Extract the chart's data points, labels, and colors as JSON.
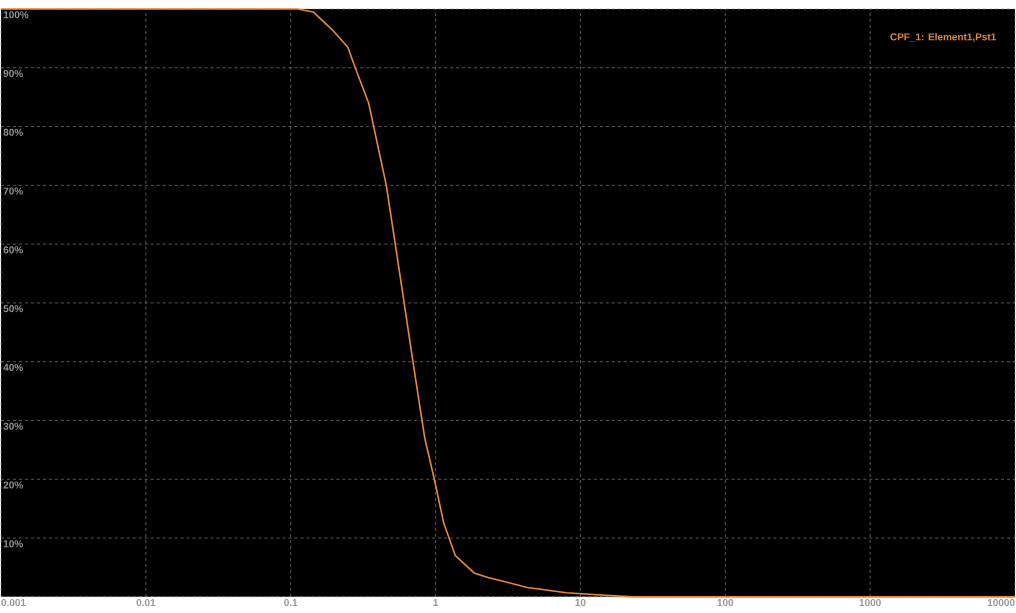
{
  "chart_data": {
    "type": "line",
    "log": "x",
    "grid": true,
    "legend": "top right",
    "xlim": [
      0.001,
      10000
    ],
    "ylim": [
      0,
      100
    ],
    "xticks": [
      0.001,
      0.01,
      0.1,
      1,
      10,
      100,
      1000,
      10000
    ],
    "yticks": [
      {
        "value": 0,
        "label": null
      },
      {
        "value": 10,
        "label": "10%"
      },
      {
        "value": 20,
        "label": "20%"
      },
      {
        "value": 30,
        "label": "30%"
      },
      {
        "value": 40,
        "label": "40%"
      },
      {
        "value": 50,
        "label": "50%"
      },
      {
        "value": 60,
        "label": "60%"
      },
      {
        "value": 70,
        "label": "70%"
      },
      {
        "value": 80,
        "label": "80%"
      },
      {
        "value": 90,
        "label": "90%"
      },
      {
        "value": 100,
        "label": "100%"
      }
    ],
    "x": [
      0.001,
      0.112,
      0.143,
      0.193,
      0.248,
      0.279,
      0.345,
      0.457,
      0.582,
      0.698,
      0.842,
      0.98,
      1.14,
      1.37,
      1.86,
      2.3,
      4.3,
      8,
      12.2,
      23,
      10000
    ],
    "series": [
      {
        "name": "CPF_1: Element1,Pst1",
        "color": "#e8893a",
        "values": [
          100,
          100,
          99.5,
          96.5,
          93.5,
          90,
          84,
          70,
          53,
          40,
          27,
          20,
          12.5,
          7,
          4,
          3.3,
          1.6,
          0.7,
          0.4,
          0,
          0
        ]
      }
    ]
  }
}
